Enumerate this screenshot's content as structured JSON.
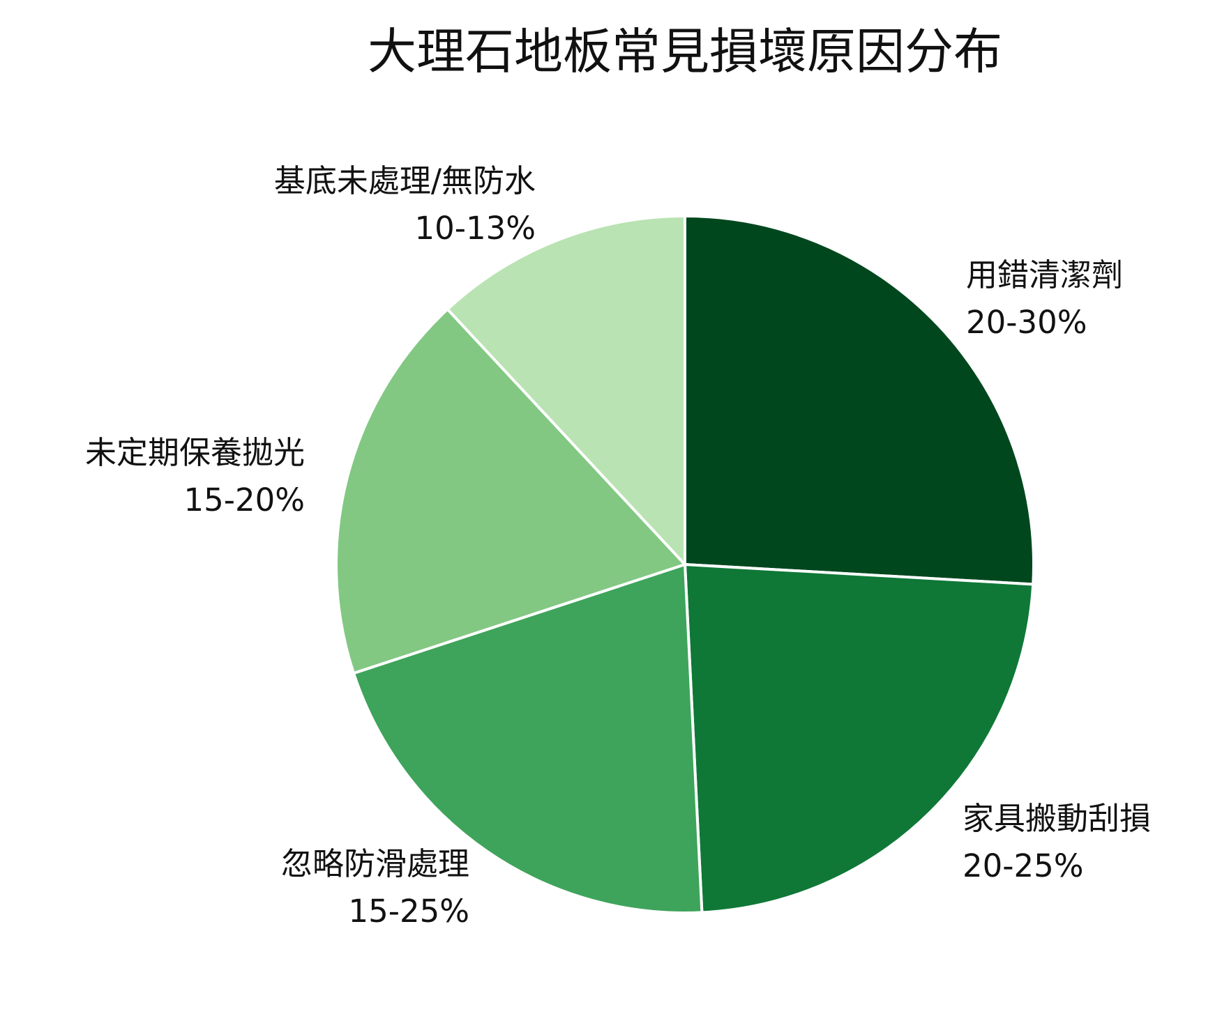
{
  "chart_data": {
    "type": "pie",
    "title": "大理石地板常見損壞原因分布",
    "start_angle": "12 o'clock",
    "direction": "clockwise",
    "slices": [
      {
        "label": "用錯清潔劑",
        "value_text": "20-30%",
        "value": 25.0,
        "color": "#00471e"
      },
      {
        "label": "家具搬動刮損",
        "value_text": "20-25%",
        "value": 22.5,
        "color": "#0f7837"
      },
      {
        "label": "忽略防滑處理",
        "value_text": "15-25%",
        "value": 20.0,
        "color": "#3ea45b"
      },
      {
        "label": "未定期保養拋光",
        "value_text": "15-20%",
        "value": 17.5,
        "color": "#82c883"
      },
      {
        "label": "基底未處理/無防水",
        "value_text": "10-13%",
        "value": 11.5,
        "color": "#b9e3b2"
      }
    ],
    "slice_border_color": "#ffffff"
  }
}
